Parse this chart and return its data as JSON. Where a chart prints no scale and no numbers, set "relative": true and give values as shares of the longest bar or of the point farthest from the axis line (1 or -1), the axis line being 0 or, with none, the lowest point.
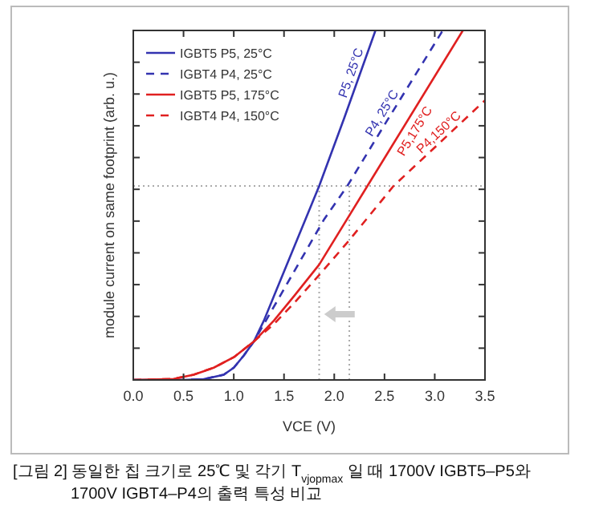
{
  "chart_data": {
    "type": "line",
    "relative": true,
    "xlabel": "VCE (V)",
    "ylabel": "module current on same footprint (arb. u.)",
    "xlim": [
      0,
      3.5
    ],
    "xticks": [
      {
        "value": 0,
        "label": "0.0"
      },
      {
        "value": 0.5,
        "label": "0.5"
      },
      {
        "value": 1,
        "label": "1.0"
      },
      {
        "value": 1.5,
        "label": "1.5"
      },
      {
        "value": 2,
        "label": "2.0"
      },
      {
        "value": 2.5,
        "label": "2.5"
      },
      {
        "value": 3,
        "label": "3.0"
      },
      {
        "value": 3.5,
        "label": "3.5"
      }
    ],
    "legend": "top left",
    "grid": false,
    "series": [
      {
        "name": "IGBT5 P5, 25°C",
        "color": "#3333b0",
        "line_style": "solid",
        "x": [
          0,
          0.5,
          0.7,
          0.9,
          1.0,
          1.1,
          1.2,
          1.3,
          1.4,
          1.5,
          1.6,
          1.85,
          2.1,
          2.41
        ],
        "values": [
          0,
          0,
          0.002,
          0.015,
          0.035,
          0.07,
          0.11,
          0.17,
          0.24,
          0.31,
          0.38,
          0.555,
          0.75,
          1.0
        ]
      },
      {
        "name": "IGBT4 P4, 25°C",
        "color": "#3333b0",
        "line_style": "dashed",
        "x": [
          0,
          0.5,
          0.7,
          0.9,
          1.0,
          1.1,
          1.2,
          1.3,
          1.5,
          1.7,
          1.9,
          2.13,
          2.5,
          3.08
        ],
        "values": [
          0,
          0,
          0.002,
          0.015,
          0.035,
          0.07,
          0.11,
          0.16,
          0.26,
          0.36,
          0.46,
          0.555,
          0.73,
          1.0
        ]
      },
      {
        "name": "IGBT5 P5, 175°C",
        "color": "#e02020",
        "line_style": "solid",
        "x": [
          0,
          0.4,
          0.6,
          0.8,
          1.0,
          1.2,
          1.4,
          1.6,
          1.85,
          2.33,
          3.28
        ],
        "values": [
          0,
          0.003,
          0.015,
          0.035,
          0.065,
          0.11,
          0.17,
          0.24,
          0.33,
          0.555,
          1.0
        ]
      },
      {
        "name": "IGBT4 P4, 150°C",
        "color": "#e02020",
        "line_style": "dashed",
        "x": [
          0,
          0.4,
          0.6,
          0.8,
          1.0,
          1.2,
          1.4,
          1.6,
          1.85,
          2.15,
          2.59,
          3.5
        ],
        "values": [
          0,
          0.003,
          0.015,
          0.035,
          0.065,
          0.11,
          0.16,
          0.22,
          0.3,
          0.4,
          0.555,
          0.8
        ]
      }
    ],
    "ref_lines": [
      {
        "axis": "y",
        "value": 0.555,
        "color": "#aaaaaa",
        "line_style": "dotted"
      },
      {
        "axis": "x",
        "value": 1.85,
        "color": "#aaaaaa",
        "line_style": "dotted"
      },
      {
        "axis": "x",
        "value": 2.15,
        "color": "#aaaaaa",
        "line_style": "dotted"
      }
    ],
    "annotations": [
      {
        "text": "P5, 25°C",
        "x": 2.25,
        "y": 0.87
      },
      {
        "text": "P4, 25°C",
        "x": 2.55,
        "y": 0.75
      },
      {
        "text": "P5,175°C",
        "x": 2.7,
        "y": 0.73
      },
      {
        "text": "P4,150°C",
        "x": 3.1,
        "y": 0.69
      },
      "[그림 2] 동일한 칩 크기로 25℃ 및 각기 T$_{vjopmax}$ 일 때 1700V IGBT5–P5와",
      "1700V IGBT4–P4의 출력 특성 비교"
    ]
  }
}
